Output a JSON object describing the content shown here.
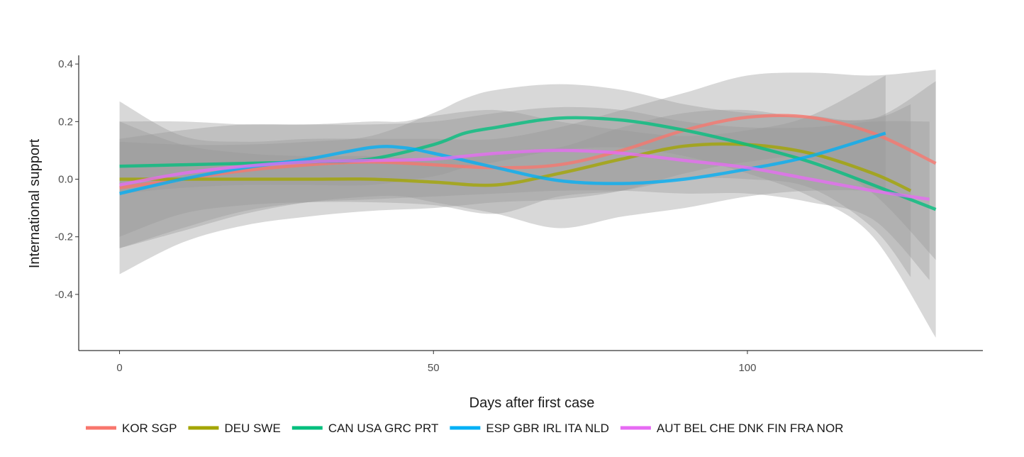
{
  "chart_data": {
    "type": "line",
    "xlabel": "Days after first case",
    "ylabel": "International support",
    "xlim": [
      -6.5,
      137.5
    ],
    "ylim": [
      -0.595,
      0.43
    ],
    "x_ticks": [
      0,
      50,
      100
    ],
    "y_ticks": [
      0.4,
      0.2,
      0.0,
      -0.2,
      -0.4
    ],
    "x_tick_labels": [
      "0",
      "50",
      "100"
    ],
    "y_tick_labels": [
      "0.4",
      "0.2",
      "0.0",
      "-0.2",
      "-0.4"
    ],
    "grid": false,
    "legend_position": "bottom",
    "band_color": "#999999",
    "series": [
      {
        "name": "KOR SGP",
        "color": "#F8766D",
        "x": [
          0,
          10,
          20,
          30,
          40,
          50,
          60,
          70,
          80,
          90,
          100,
          110,
          120,
          130
        ],
        "y": [
          -0.03,
          0.0,
          0.03,
          0.05,
          0.06,
          0.05,
          0.04,
          0.05,
          0.1,
          0.17,
          0.215,
          0.215,
          0.16,
          0.055
        ],
        "ci_low": [
          -0.33,
          -0.22,
          -0.16,
          -0.13,
          -0.11,
          -0.1,
          -0.08,
          -0.07,
          -0.04,
          0.02,
          0.06,
          0.07,
          -0.05,
          -0.28
        ],
        "ci_high": [
          0.27,
          0.15,
          0.13,
          0.14,
          0.14,
          0.14,
          0.14,
          0.18,
          0.24,
          0.3,
          0.36,
          0.37,
          0.36,
          0.38
        ]
      },
      {
        "name": "DEU SWE",
        "color": "#A3A500",
        "x": [
          0,
          10,
          20,
          30,
          40,
          50,
          60,
          70,
          80,
          90,
          100,
          110,
          120,
          126
        ],
        "y": [
          0.0,
          0.0,
          0.0,
          0.0,
          0.0,
          -0.01,
          -0.02,
          0.02,
          0.07,
          0.115,
          0.12,
          0.09,
          0.02,
          -0.04
        ],
        "ci_low": [
          -0.2,
          -0.12,
          -0.09,
          -0.08,
          -0.08,
          -0.09,
          -0.12,
          -0.06,
          -0.04,
          0.0,
          0.0,
          -0.03,
          -0.17,
          -0.34
        ],
        "ci_high": [
          0.2,
          0.12,
          0.09,
          0.08,
          0.08,
          0.07,
          0.09,
          0.11,
          0.18,
          0.23,
          0.24,
          0.21,
          0.21,
          0.26
        ]
      },
      {
        "name": "CAN USA GRC PRT",
        "color": "#00BF7D",
        "x": [
          0,
          10,
          20,
          30,
          40,
          50,
          55,
          60,
          70,
          80,
          90,
          100,
          110,
          120,
          130
        ],
        "y": [
          0.045,
          0.05,
          0.055,
          0.06,
          0.07,
          0.12,
          0.16,
          0.18,
          0.212,
          0.205,
          0.17,
          0.12,
          0.06,
          -0.02,
          -0.105
        ],
        "ci_low": [
          -0.05,
          -0.03,
          -0.02,
          -0.02,
          -0.02,
          0.01,
          0.04,
          0.06,
          0.1,
          0.11,
          0.08,
          0.02,
          -0.06,
          -0.2,
          -0.55
        ],
        "ci_high": [
          0.13,
          0.12,
          0.12,
          0.13,
          0.15,
          0.23,
          0.28,
          0.31,
          0.33,
          0.31,
          0.26,
          0.23,
          0.22,
          0.21,
          0.34
        ]
      },
      {
        "name": "ESP GBR IRL ITA NLD",
        "color": "#00B0F6",
        "x": [
          0,
          10,
          20,
          30,
          40,
          45,
          50,
          60,
          70,
          80,
          90,
          100,
          110,
          122
        ],
        "y": [
          -0.05,
          0.0,
          0.04,
          0.07,
          0.11,
          0.11,
          0.09,
          0.04,
          -0.005,
          -0.015,
          0.0,
          0.035,
          0.08,
          0.16
        ],
        "ci_low": [
          -0.24,
          -0.18,
          -0.12,
          -0.08,
          -0.06,
          -0.06,
          -0.08,
          -0.12,
          -0.17,
          -0.13,
          -0.1,
          -0.06,
          -0.04,
          -0.04
        ],
        "ci_high": [
          0.14,
          0.17,
          0.19,
          0.19,
          0.2,
          0.2,
          0.22,
          0.24,
          0.2,
          0.17,
          0.15,
          0.17,
          0.22,
          0.36
        ]
      },
      {
        "name": "AUT BEL CHE DNK FIN FRA NOR",
        "color": "#E76BF3",
        "x": [
          0,
          10,
          20,
          30,
          40,
          50,
          60,
          70,
          80,
          90,
          100,
          110,
          120,
          129
        ],
        "y": [
          -0.02,
          0.02,
          0.045,
          0.06,
          0.065,
          0.07,
          0.09,
          0.1,
          0.09,
          0.065,
          0.04,
          0.0,
          -0.04,
          -0.07
        ],
        "ci_low": [
          -0.24,
          -0.17,
          -0.11,
          -0.08,
          -0.07,
          -0.06,
          -0.05,
          -0.04,
          -0.04,
          -0.05,
          -0.05,
          -0.08,
          -0.14,
          -0.35
        ],
        "ci_high": [
          0.2,
          0.2,
          0.19,
          0.19,
          0.19,
          0.2,
          0.23,
          0.25,
          0.24,
          0.2,
          0.18,
          0.18,
          0.2,
          0.2
        ]
      }
    ]
  }
}
